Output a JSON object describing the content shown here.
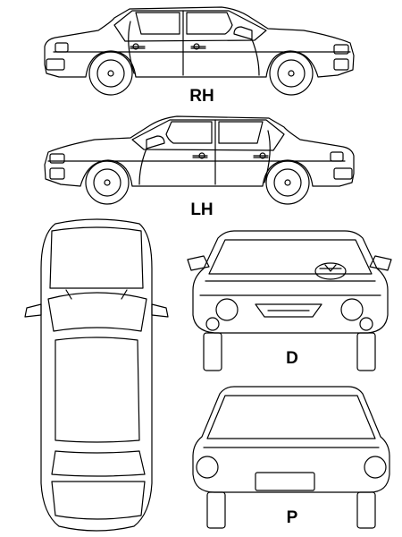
{
  "views": {
    "rh": {
      "label": "RH"
    },
    "lh": {
      "label": "LH"
    },
    "d": {
      "label": "D"
    },
    "p": {
      "label": "P"
    }
  },
  "colors": {
    "stroke": "#000000",
    "background": "#ffffff"
  }
}
